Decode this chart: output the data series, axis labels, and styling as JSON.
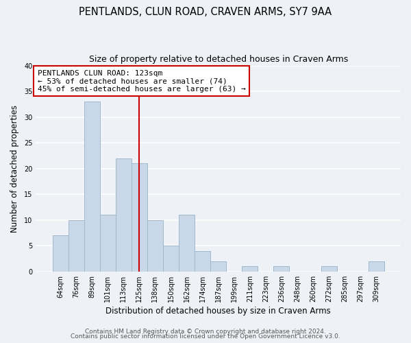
{
  "title": "PENTLANDS, CLUN ROAD, CRAVEN ARMS, SY7 9AA",
  "subtitle": "Size of property relative to detached houses in Craven Arms",
  "xlabel": "Distribution of detached houses by size in Craven Arms",
  "ylabel": "Number of detached properties",
  "bin_labels": [
    "64sqm",
    "76sqm",
    "89sqm",
    "101sqm",
    "113sqm",
    "125sqm",
    "138sqm",
    "150sqm",
    "162sqm",
    "174sqm",
    "187sqm",
    "199sqm",
    "211sqm",
    "223sqm",
    "236sqm",
    "248sqm",
    "260sqm",
    "272sqm",
    "285sqm",
    "297sqm",
    "309sqm"
  ],
  "bar_heights": [
    7,
    10,
    33,
    11,
    22,
    21,
    10,
    5,
    11,
    4,
    2,
    0,
    1,
    0,
    1,
    0,
    0,
    1,
    0,
    0,
    2
  ],
  "bar_color": "#c8d8e8",
  "bar_edge_color": "#a0b8cc",
  "ylim": [
    0,
    40
  ],
  "yticks": [
    0,
    5,
    10,
    15,
    20,
    25,
    30,
    35,
    40
  ],
  "marker_index": 5,
  "marker_color": "#cc0000",
  "annotation_title": "PENTLANDS CLUN ROAD: 123sqm",
  "annotation_line1": "← 53% of detached houses are smaller (74)",
  "annotation_line2": "45% of semi-detached houses are larger (63) →",
  "annotation_box_color": "#ffffff",
  "annotation_box_edge": "#cc0000",
  "footer1": "Contains HM Land Registry data © Crown copyright and database right 2024.",
  "footer2": "Contains public sector information licensed under the Open Government Licence v3.0.",
  "background_color": "#eef2f6",
  "plot_background": "#eef2f6",
  "grid_color": "#ffffff",
  "title_fontsize": 10.5,
  "subtitle_fontsize": 9,
  "axis_label_fontsize": 8.5,
  "tick_fontsize": 7,
  "annotation_fontsize": 8,
  "footer_fontsize": 6.5
}
